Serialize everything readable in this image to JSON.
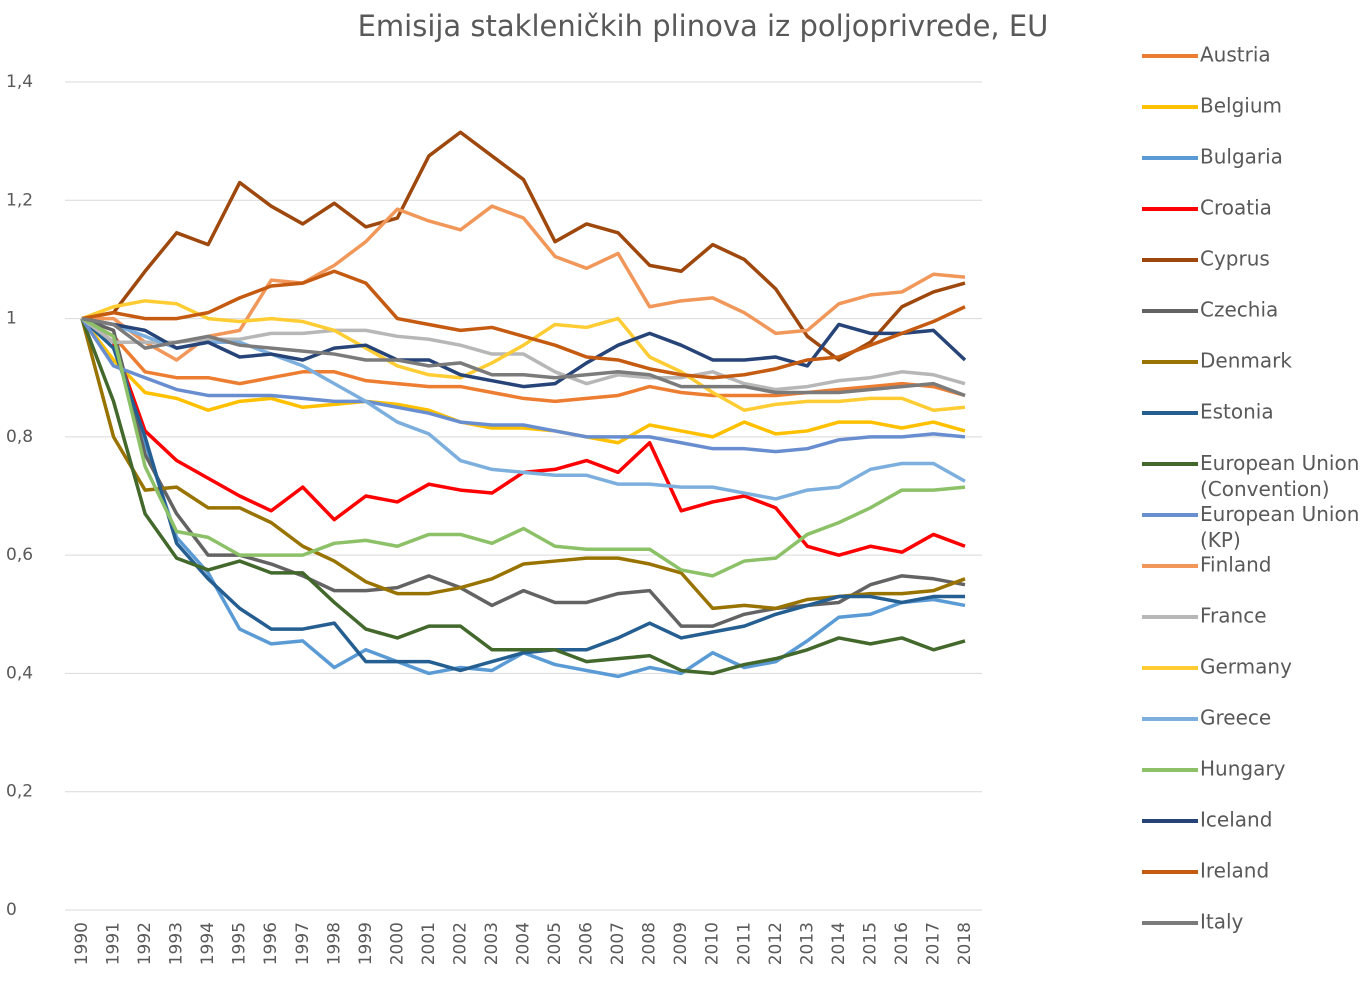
{
  "chart_data": {
    "type": "line",
    "title": "Emisija stakleničkih plinova iz poljoprivrede, EU",
    "categories": [
      "1990",
      "1991",
      "1992",
      "1993",
      "1994",
      "1995",
      "1996",
      "1997",
      "1998",
      "1999",
      "2000",
      "2001",
      "2002",
      "2003",
      "2004",
      "2005",
      "2006",
      "2007",
      "2008",
      "2009",
      "2010",
      "2011",
      "2012",
      "2013",
      "2014",
      "2015",
      "2016",
      "2017",
      "2018"
    ],
    "ylim": [
      0,
      1.4
    ],
    "yticks": [
      0,
      {
        "value": 0.2,
        "label": "0,2"
      },
      {
        "value": 0.4,
        "label": "0,4"
      },
      {
        "value": 0.6,
        "label": "0,6"
      },
      {
        "value": 0.8,
        "label": "0,8"
      },
      1,
      {
        "value": 1.2,
        "label": "1,2"
      },
      {
        "value": 1.4,
        "label": "1,4"
      }
    ],
    "grid": true,
    "legend": "right",
    "series": [
      {
        "name": "Austria",
        "color": "#ed7d31",
        "values": [
          1,
          0.97,
          0.91,
          0.9,
          0.9,
          0.89,
          0.9,
          0.91,
          0.91,
          0.895,
          0.89,
          0.885,
          0.885,
          0.875,
          0.865,
          0.86,
          0.865,
          0.87,
          0.885,
          0.875,
          0.87,
          0.87,
          0.87,
          0.875,
          0.88,
          0.885,
          0.89,
          0.885,
          0.87
        ]
      },
      {
        "name": "Belgium",
        "color": "#ffc000",
        "values": [
          1,
          0.93,
          0.875,
          0.865,
          0.845,
          0.86,
          0.865,
          0.85,
          0.855,
          0.86,
          0.855,
          0.845,
          0.825,
          0.815,
          0.815,
          0.81,
          0.8,
          0.79,
          0.82,
          0.81,
          0.8,
          0.825,
          0.805,
          0.81,
          0.825,
          0.825,
          0.815,
          0.825,
          0.81
        ]
      },
      {
        "name": "Bulgaria",
        "color": "#5b9bd5",
        "values": [
          1,
          0.96,
          0.79,
          0.63,
          0.57,
          0.475,
          0.45,
          0.455,
          0.41,
          0.44,
          0.42,
          0.4,
          0.41,
          0.405,
          0.435,
          0.415,
          0.405,
          0.395,
          0.41,
          0.4,
          0.435,
          0.41,
          0.42,
          0.455,
          0.495,
          0.5,
          0.52,
          0.525,
          0.515
        ]
      },
      {
        "name": "Croatia",
        "color": "#ff0000",
        "values": [
          1,
          0.96,
          0.81,
          0.76,
          0.73,
          0.7,
          0.675,
          0.715,
          0.66,
          0.7,
          0.69,
          0.72,
          0.71,
          0.705,
          0.74,
          0.745,
          0.76,
          0.74,
          0.79,
          0.675,
          0.69,
          0.7,
          0.68,
          0.615,
          0.6,
          0.615,
          0.605,
          0.635,
          0.615
        ]
      },
      {
        "name": "Cyprus",
        "color": "#9e480e",
        "values": [
          1,
          1.01,
          1.08,
          1.145,
          1.125,
          1.23,
          1.19,
          1.16,
          1.195,
          1.155,
          1.17,
          1.275,
          1.315,
          1.275,
          1.235,
          1.13,
          1.16,
          1.145,
          1.09,
          1.08,
          1.125,
          1.1,
          1.05,
          0.97,
          0.93,
          0.96,
          1.02,
          1.045,
          1.06
        ]
      },
      {
        "name": "Czechia",
        "color": "#636363",
        "values": [
          1,
          0.98,
          0.77,
          0.67,
          0.6,
          0.6,
          0.585,
          0.565,
          0.54,
          0.54,
          0.545,
          0.565,
          0.545,
          0.515,
          0.54,
          0.52,
          0.52,
          0.535,
          0.54,
          0.48,
          0.48,
          0.5,
          0.51,
          0.515,
          0.52,
          0.55,
          0.565,
          0.56,
          0.55
        ]
      },
      {
        "name": "Denmark",
        "color": "#997300",
        "values": [
          1,
          0.8,
          0.71,
          0.715,
          0.68,
          0.68,
          0.655,
          0.615,
          0.59,
          0.555,
          0.535,
          0.535,
          0.545,
          0.56,
          0.585,
          0.59,
          0.595,
          0.595,
          0.585,
          0.57,
          0.51,
          0.515,
          0.51,
          0.525,
          0.53,
          0.535,
          0.535,
          0.54,
          0.56
        ]
      },
      {
        "name": "Estonia",
        "color": "#255e91",
        "values": [
          1,
          0.95,
          0.8,
          0.62,
          0.56,
          0.51,
          0.475,
          0.475,
          0.485,
          0.42,
          0.42,
          0.42,
          0.405,
          0.42,
          0.435,
          0.44,
          0.44,
          0.46,
          0.485,
          0.46,
          0.47,
          0.48,
          0.5,
          0.515,
          0.53,
          0.53,
          0.52,
          0.53,
          0.53
        ]
      },
      {
        "name": "European Union (Convention)",
        "color": "#43682b",
        "values": [
          1,
          0.86,
          0.67,
          0.595,
          0.575,
          0.59,
          0.57,
          0.57,
          0.52,
          0.475,
          0.46,
          0.48,
          0.48,
          0.44,
          0.44,
          0.44,
          0.42,
          0.425,
          0.43,
          0.405,
          0.4,
          0.415,
          0.425,
          0.44,
          0.46,
          0.45,
          0.46,
          0.44,
          0.455
        ]
      },
      {
        "name": "European Union (KP)",
        "color": "#698ed0",
        "values": [
          1,
          0.92,
          0.9,
          0.88,
          0.87,
          0.87,
          0.87,
          0.865,
          0.86,
          0.86,
          0.85,
          0.84,
          0.825,
          0.82,
          0.82,
          0.81,
          0.8,
          0.8,
          0.8,
          0.79,
          0.78,
          0.78,
          0.775,
          0.78,
          0.795,
          0.8,
          0.8,
          0.805,
          0.8
        ]
      },
      {
        "name": "Finland",
        "color": "#f1975a",
        "values": [
          1,
          1,
          0.96,
          0.93,
          0.97,
          0.98,
          1.065,
          1.06,
          1.09,
          1.13,
          1.185,
          1.165,
          1.15,
          1.19,
          1.17,
          1.105,
          1.085,
          1.11,
          1.02,
          1.03,
          1.035,
          1.01,
          0.975,
          0.98,
          1.025,
          1.04,
          1.045,
          1.075,
          1.07
        ]
      },
      {
        "name": "France",
        "color": "#b7b7b7",
        "values": [
          1,
          0.96,
          0.96,
          0.96,
          0.965,
          0.965,
          0.975,
          0.975,
          0.98,
          0.98,
          0.97,
          0.965,
          0.955,
          0.94,
          0.94,
          0.91,
          0.89,
          0.905,
          0.9,
          0.9,
          0.91,
          0.89,
          0.88,
          0.885,
          0.895,
          0.9,
          0.91,
          0.905,
          0.89
        ]
      },
      {
        "name": "Germany",
        "color": "#ffcd33",
        "values": [
          1,
          1.02,
          1.03,
          1.025,
          1,
          0.995,
          1,
          0.995,
          0.98,
          0.95,
          0.92,
          0.905,
          0.9,
          0.925,
          0.955,
          0.99,
          0.985,
          1,
          0.935,
          0.91,
          0.875,
          0.845,
          0.855,
          0.86,
          0.86,
          0.865,
          0.865,
          0.845,
          0.85
        ]
      },
      {
        "name": "Greece",
        "color": "#7cafdd",
        "values": [
          1,
          0.99,
          0.97,
          0.95,
          0.96,
          0.96,
          0.94,
          0.92,
          0.89,
          0.86,
          0.825,
          0.805,
          0.76,
          0.745,
          0.74,
          0.735,
          0.735,
          0.72,
          0.72,
          0.715,
          0.715,
          0.705,
          0.695,
          0.71,
          0.715,
          0.745,
          0.755,
          0.755,
          0.725
        ]
      },
      {
        "name": "Hungary",
        "color": "#8cc168",
        "values": [
          1,
          0.97,
          0.75,
          0.64,
          0.63,
          0.6,
          0.6,
          0.6,
          0.62,
          0.625,
          0.615,
          0.635,
          0.635,
          0.62,
          0.645,
          0.615,
          0.61,
          0.61,
          0.61,
          0.575,
          0.565,
          0.59,
          0.595,
          0.635,
          0.655,
          0.68,
          0.71,
          0.71,
          0.715
        ]
      },
      {
        "name": "Iceland",
        "color": "#264478",
        "values": [
          1,
          0.99,
          0.98,
          0.95,
          0.96,
          0.935,
          0.94,
          0.93,
          0.95,
          0.955,
          0.93,
          0.93,
          0.905,
          0.895,
          0.885,
          0.89,
          0.925,
          0.955,
          0.975,
          0.955,
          0.93,
          0.93,
          0.935,
          0.92,
          0.99,
          0.975,
          0.975,
          0.98,
          0.93
        ]
      },
      {
        "name": "Ireland",
        "color": "#c55a11",
        "values": [
          1,
          1.01,
          1,
          1,
          1.01,
          1.035,
          1.055,
          1.06,
          1.08,
          1.06,
          1,
          0.99,
          0.98,
          0.985,
          0.97,
          0.955,
          0.935,
          0.93,
          0.915,
          0.905,
          0.9,
          0.905,
          0.915,
          0.93,
          0.935,
          0.955,
          0.975,
          0.995,
          1.02
        ]
      },
      {
        "name": "Italy",
        "color": "#7b7b7b",
        "values": [
          1,
          0.99,
          0.95,
          0.96,
          0.97,
          0.955,
          0.95,
          0.945,
          0.94,
          0.93,
          0.93,
          0.92,
          0.925,
          0.905,
          0.905,
          0.9,
          0.905,
          0.91,
          0.905,
          0.885,
          0.885,
          0.885,
          0.875,
          0.875,
          0.875,
          0.88,
          0.885,
          0.89,
          0.87
        ]
      }
    ]
  }
}
